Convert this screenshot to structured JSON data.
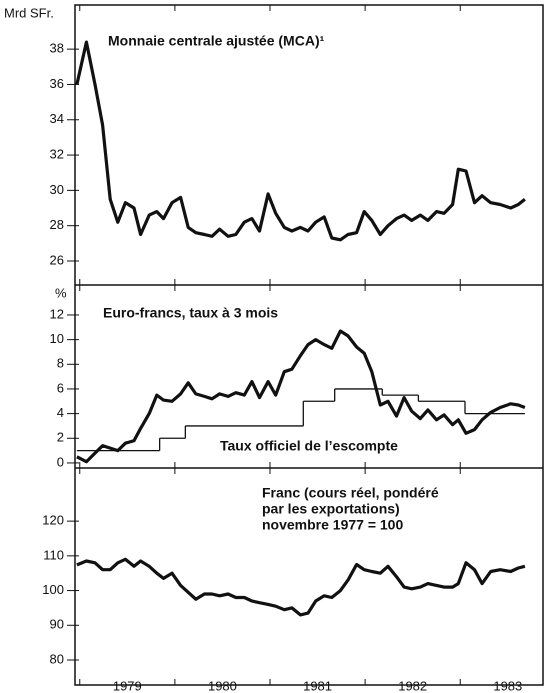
{
  "chart_data": [
    {
      "type": "line",
      "ylabel": "Mrd SFr.",
      "title": "Monnaie centrale ajustée (MCA)¹",
      "xlim": [
        1978.95,
        1983.87
      ],
      "xticks": [
        1979,
        1980,
        1981,
        1982,
        1983
      ],
      "ylim": [
        24.64,
        40.5
      ],
      "yticks": [
        26,
        28,
        30,
        32,
        34,
        36,
        38
      ],
      "series": [
        {
          "color": "#111111",
          "x": [
            1978.97,
            1979.07,
            1979.16,
            1979.24,
            1979.32,
            1979.4,
            1979.48,
            1979.57,
            1979.64,
            1979.73,
            1979.81,
            1979.88,
            1979.97,
            1980.06,
            1980.14,
            1980.22,
            1980.31,
            1980.39,
            1980.47,
            1980.56,
            1980.64,
            1980.73,
            1980.81,
            1980.89,
            1980.98,
            1981.06,
            1981.15,
            1981.23,
            1981.32,
            1981.4,
            1981.48,
            1981.57,
            1981.65,
            1981.74,
            1981.82,
            1981.91,
            1981.99,
            1982.07,
            1982.16,
            1982.24,
            1982.33,
            1982.41,
            1982.49,
            1982.58,
            1982.66,
            1982.75,
            1982.83,
            1982.92,
            1982.98,
            1983.06,
            1983.15,
            1983.23,
            1983.32,
            1983.42,
            1983.53,
            1983.61,
            1983.68
          ],
          "values": [
            36.0,
            38.4,
            36.0,
            33.7,
            29.5,
            28.2,
            29.3,
            29.0,
            27.5,
            28.6,
            28.8,
            28.4,
            29.3,
            29.6,
            27.9,
            27.6,
            27.5,
            27.4,
            27.8,
            27.4,
            27.5,
            28.2,
            28.4,
            27.7,
            29.8,
            28.7,
            27.9,
            27.7,
            27.9,
            27.7,
            28.2,
            28.5,
            27.3,
            27.2,
            27.5,
            27.6,
            28.8,
            28.3,
            27.5,
            28.0,
            28.4,
            28.6,
            28.3,
            28.6,
            28.3,
            28.8,
            28.7,
            29.2,
            31.2,
            31.1,
            29.3,
            29.7,
            29.3,
            29.2,
            29.0,
            29.2,
            29.5
          ]
        }
      ]
    },
    {
      "type": "line",
      "ylabel": "%",
      "title": "Euro-francs, taux à 3 mois",
      "xlim": [
        1978.95,
        1983.87
      ],
      "xticks": [
        1979,
        1980,
        1981,
        1982,
        1983
      ],
      "ylim": [
        -0.41,
        14.43
      ],
      "yticks": [
        0,
        2,
        4,
        6,
        8,
        10,
        12
      ],
      "series": [
        {
          "color": "#111111",
          "x": [
            1978.97,
            1979.07,
            1979.16,
            1979.24,
            1979.32,
            1979.4,
            1979.48,
            1979.57,
            1979.64,
            1979.73,
            1979.81,
            1979.88,
            1979.97,
            1980.06,
            1980.14,
            1980.22,
            1980.31,
            1980.39,
            1980.47,
            1980.56,
            1980.64,
            1980.73,
            1980.81,
            1980.89,
            1980.98,
            1981.06,
            1981.15,
            1981.23,
            1981.32,
            1981.4,
            1981.48,
            1981.57,
            1981.65,
            1981.74,
            1981.82,
            1981.91,
            1981.99,
            1982.07,
            1982.16,
            1982.24,
            1982.33,
            1982.41,
            1982.49,
            1982.58,
            1982.66,
            1982.75,
            1982.83,
            1982.92,
            1982.98,
            1983.06,
            1983.15,
            1983.23,
            1983.32,
            1983.42,
            1983.53,
            1983.61,
            1983.68
          ],
          "values": [
            0.5,
            0.1,
            0.8,
            1.4,
            1.2,
            1.0,
            1.6,
            1.8,
            2.8,
            4.0,
            5.5,
            5.1,
            5.0,
            5.6,
            6.5,
            5.6,
            5.4,
            5.2,
            5.6,
            5.4,
            5.7,
            5.5,
            6.6,
            5.3,
            6.6,
            5.5,
            7.4,
            7.6,
            8.7,
            9.6,
            10.0,
            9.6,
            9.3,
            10.7,
            10.3,
            9.4,
            8.9,
            7.4,
            4.7,
            5.0,
            3.8,
            5.3,
            4.2,
            3.6,
            4.3,
            3.5,
            3.9,
            3.1,
            3.5,
            2.4,
            2.7,
            3.5,
            4.1,
            4.5,
            4.8,
            4.7,
            4.5
          ]
        },
        {
          "name": "Taux officiel de l’escompte",
          "step": true,
          "color": "#111111",
          "x": [
            1978.97,
            1979.84,
            1980.11,
            1981.35,
            1981.68,
            1982.18,
            1982.56,
            1983.05
          ],
          "values": [
            1,
            2,
            3,
            5,
            6,
            5.5,
            5,
            4
          ]
        }
      ]
    },
    {
      "type": "line",
      "title": [
        "Franc (cours réel, pondéré",
        "par les exportations)",
        "novembre 1977 = 100"
      ],
      "xlim": [
        1978.95,
        1983.87
      ],
      "xticks": [
        1979,
        1980,
        1981,
        1982,
        1983
      ],
      "ylim": [
        72.8,
        135.3
      ],
      "yticks": [
        80,
        90,
        100,
        110,
        120
      ],
      "series": [
        {
          "color": "#111111",
          "x": [
            1978.97,
            1979.07,
            1979.16,
            1979.24,
            1979.32,
            1979.4,
            1979.48,
            1979.57,
            1979.64,
            1979.73,
            1979.81,
            1979.88,
            1979.97,
            1980.06,
            1980.14,
            1980.22,
            1980.31,
            1980.39,
            1980.47,
            1980.56,
            1980.64,
            1980.73,
            1980.81,
            1980.89,
            1980.98,
            1981.06,
            1981.15,
            1981.23,
            1981.32,
            1981.4,
            1981.48,
            1981.57,
            1981.65,
            1981.74,
            1981.82,
            1981.91,
            1981.99,
            1982.07,
            1982.16,
            1982.24,
            1982.33,
            1982.41,
            1982.49,
            1982.58,
            1982.66,
            1982.75,
            1982.83,
            1982.92,
            1982.98,
            1983.06,
            1983.15,
            1983.23,
            1983.32,
            1983.42,
            1983.53,
            1983.61,
            1983.68
          ],
          "values": [
            107.4,
            108.5,
            108,
            106,
            106,
            108,
            109,
            107,
            108.5,
            107,
            105,
            103.5,
            105,
            101.5,
            99.5,
            97.5,
            99,
            99,
            98.5,
            99,
            98,
            98,
            97,
            96.5,
            96,
            95.5,
            94.5,
            95,
            93,
            93.5,
            97,
            98.5,
            98,
            100,
            103,
            107.5,
            106,
            105.5,
            105,
            107,
            104,
            101,
            100.5,
            101,
            102,
            101.5,
            101,
            101,
            102,
            108,
            106,
            102,
            105.5,
            106,
            105.5,
            106.5,
            107
          ]
        }
      ]
    }
  ]
}
